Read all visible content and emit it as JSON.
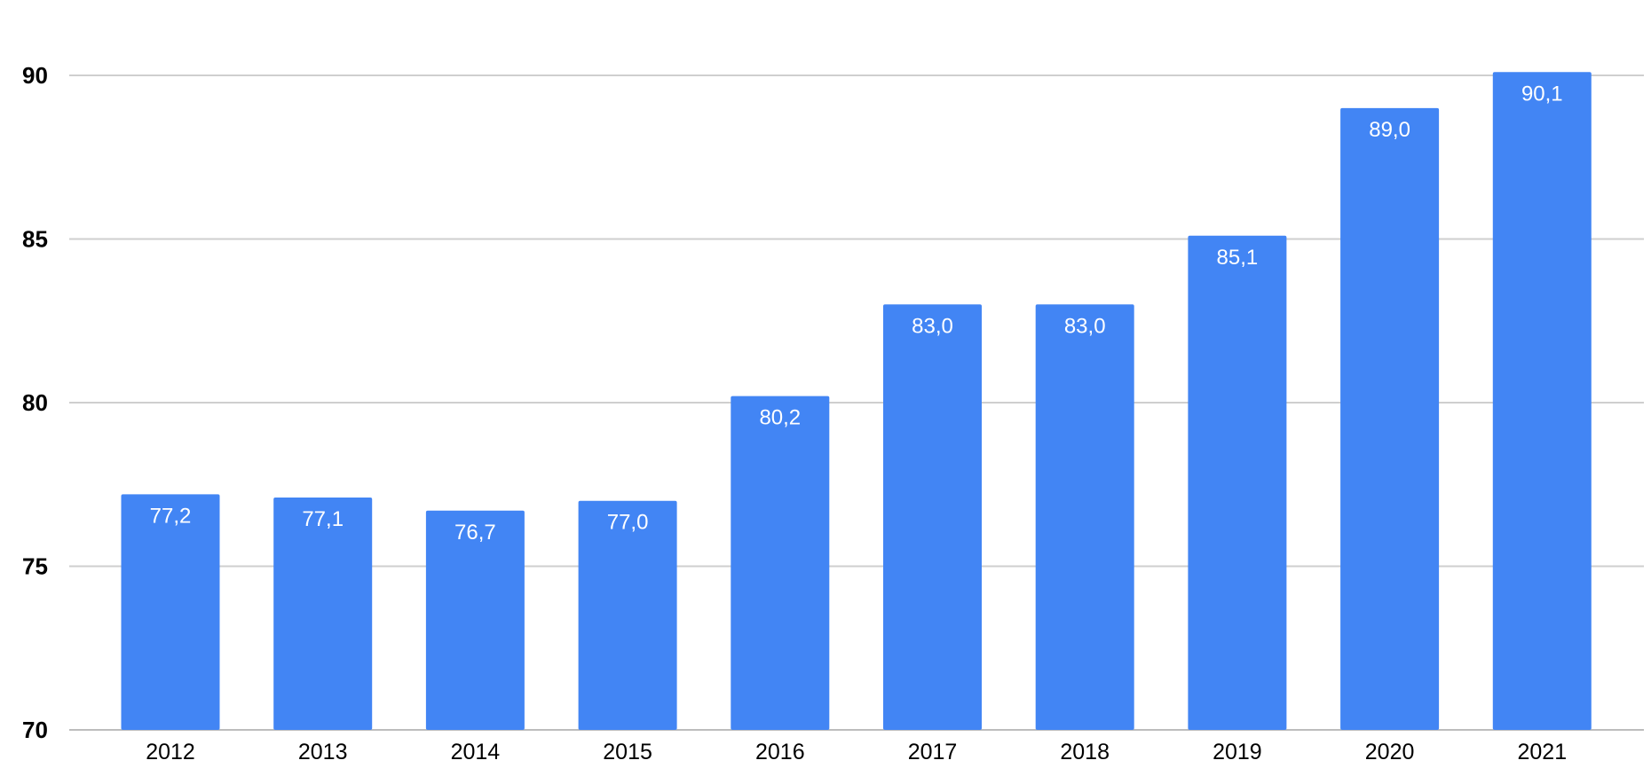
{
  "chart_data": {
    "type": "bar",
    "title": "",
    "xlabel": "",
    "ylabel": "",
    "categories": [
      "2012",
      "2013",
      "2014",
      "2015",
      "2016",
      "2017",
      "2018",
      "2019",
      "2020",
      "2021"
    ],
    "values": [
      77.2,
      77.1,
      76.7,
      77.0,
      80.2,
      83.0,
      83.0,
      85.1,
      89.0,
      90.1
    ],
    "data_labels": [
      "77,2",
      "77,1",
      "76,7",
      "77,0",
      "80,2",
      "83,0",
      "83,0",
      "85,1",
      "89,0",
      "90,1"
    ],
    "ylim": [
      70,
      90
    ],
    "y_ticks": [
      70,
      75,
      80,
      85,
      90
    ],
    "y_tick_labels": [
      "70",
      "75",
      "80",
      "85",
      "90"
    ],
    "grid": true,
    "legend": "none",
    "colors": {
      "bar": "#4285f4",
      "grid": "#cfcfcf",
      "data_label": "#ffffff"
    }
  }
}
